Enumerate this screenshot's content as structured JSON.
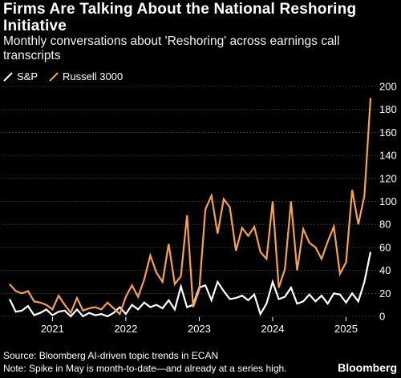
{
  "header": {
    "title": "Firms Are Talking About the National Reshoring Initiative",
    "subtitle": "Monthly conversations about 'Reshoring' across earnings call transcripts"
  },
  "footer": {
    "source": "Source: Bloomberg AI-driven topic trends in ECAN",
    "note": "Note: Spike in May is month-to-date—and already at a series high.",
    "brand": "Bloomberg"
  },
  "colors": {
    "background": "#000000",
    "sp": "#ffffff",
    "russell": "#f5a24b",
    "grid": "#555555"
  },
  "chart_data": {
    "type": "line",
    "title": "Firms Are Talking About the National Reshoring Initiative",
    "subtitle": "Monthly conversations about 'Reshoring' across earnings call transcripts",
    "x": [
      "2020-06",
      "2020-07",
      "2020-08",
      "2020-09",
      "2020-10",
      "2020-11",
      "2020-12",
      "2021-01",
      "2021-02",
      "2021-03",
      "2021-04",
      "2021-05",
      "2021-06",
      "2021-07",
      "2021-08",
      "2021-09",
      "2021-10",
      "2021-11",
      "2021-12",
      "2022-01",
      "2022-02",
      "2022-03",
      "2022-04",
      "2022-05",
      "2022-06",
      "2022-07",
      "2022-08",
      "2022-09",
      "2022-10",
      "2022-11",
      "2022-12",
      "2023-01",
      "2023-02",
      "2023-03",
      "2023-04",
      "2023-05",
      "2023-06",
      "2023-07",
      "2023-08",
      "2023-09",
      "2023-10",
      "2023-11",
      "2023-12",
      "2024-01",
      "2024-02",
      "2024-03",
      "2024-04",
      "2024-05",
      "2024-06",
      "2024-07",
      "2024-08",
      "2024-09",
      "2024-10",
      "2024-11",
      "2024-12",
      "2025-01",
      "2025-02",
      "2025-03",
      "2025-04",
      "2025-05"
    ],
    "series": [
      {
        "name": "S&P",
        "values": [
          15,
          4,
          5,
          9,
          1,
          3,
          6,
          1,
          4,
          5,
          0,
          6,
          0,
          3,
          1,
          2,
          0,
          3,
          8,
          2,
          10,
          6,
          12,
          8,
          10,
          7,
          14,
          6,
          26,
          8,
          10,
          25,
          27,
          14,
          30,
          22,
          15,
          16,
          18,
          14,
          19,
          2,
          11,
          30,
          15,
          17,
          25,
          11,
          13,
          19,
          13,
          18,
          11,
          20,
          19,
          12,
          20,
          13,
          30,
          56
        ]
      },
      {
        "name": "Russell 3000",
        "values": [
          28,
          22,
          20,
          22,
          13,
          12,
          10,
          6,
          18,
          10,
          3,
          16,
          5,
          7,
          8,
          6,
          12,
          7,
          2,
          17,
          27,
          17,
          32,
          53,
          38,
          30,
          63,
          28,
          35,
          88,
          8,
          23,
          93,
          105,
          72,
          102,
          95,
          57,
          77,
          70,
          78,
          56,
          50,
          100,
          25,
          41,
          100,
          40,
          76,
          64,
          60,
          50,
          65,
          78,
          37,
          47,
          110,
          80,
          105,
          190
        ]
      }
    ],
    "x_ticks": [
      "2021",
      "2022",
      "2023",
      "2024",
      "2025"
    ],
    "y_ticks": [
      0,
      20,
      40,
      60,
      80,
      100,
      120,
      140,
      160,
      180,
      200
    ],
    "ylim": [
      0,
      200
    ],
    "y_axis_side": "right",
    "grid": true,
    "legend": {
      "placement": "top-left",
      "entries": [
        "S&P",
        "Russell 3000"
      ]
    }
  }
}
